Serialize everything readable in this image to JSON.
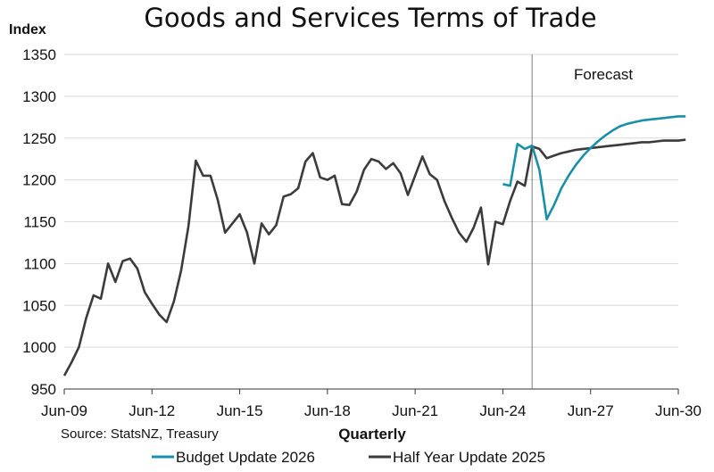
{
  "chart_data": {
    "type": "line",
    "title": "Goods and Services Terms of Trade",
    "ylabel": "Index",
    "xlabel": "Quarterly",
    "source": "Source: StatsNZ, Treasury",
    "annotation": "Forecast",
    "forecast_start": "Jun-25",
    "ylim": [
      950,
      1350
    ],
    "yticks": [
      950,
      1000,
      1050,
      1100,
      1150,
      1200,
      1250,
      1300,
      1350
    ],
    "xrange": [
      "Jun-09",
      "Jun-30"
    ],
    "xticks": [
      "Jun-09",
      "Jun-12",
      "Jun-15",
      "Jun-18",
      "Jun-21",
      "Jun-24",
      "Jun-27",
      "Jun-30"
    ],
    "grid": true,
    "legend_position": "bottom",
    "colors": {
      "budget": "#1a8fa8",
      "half_year": "#3b3b3b",
      "grid": "#d9d9d9",
      "vline": "#7f7f7f",
      "axis": "#333333"
    },
    "series": [
      {
        "name": "Budget Update 2026",
        "start": "Jun-24",
        "values": [
          1195,
          1193,
          1243,
          1237,
          1241,
          1212,
          1153,
          1170,
          1190,
          1205,
          1218,
          1229,
          1238,
          1246,
          1253,
          1259,
          1264,
          1267,
          1269,
          1271,
          1272,
          1273,
          1274,
          1275,
          1276,
          1276
        ]
      },
      {
        "name": "Half Year Update 2025",
        "start": "Jun-09",
        "values": [
          966,
          982,
          1000,
          1035,
          1062,
          1058,
          1100,
          1078,
          1103,
          1106,
          1094,
          1066,
          1052,
          1039,
          1030,
          1055,
          1092,
          1145,
          1223,
          1205,
          1205,
          1176,
          1137,
          1148,
          1159,
          1137,
          1100,
          1148,
          1135,
          1146,
          1180,
          1183,
          1190,
          1222,
          1232,
          1203,
          1200,
          1205,
          1171,
          1170,
          1186,
          1212,
          1225,
          1222,
          1213,
          1220,
          1208,
          1182,
          1205,
          1228,
          1207,
          1200,
          1175,
          1155,
          1137,
          1126,
          1143,
          1167,
          1099,
          1150,
          1147,
          1175,
          1198,
          1193,
          1240,
          1237,
          1226,
          1229,
          1232,
          1234,
          1236,
          1237,
          1238,
          1239,
          1240,
          1241,
          1242,
          1243,
          1244,
          1245,
          1245,
          1246,
          1247,
          1247,
          1247,
          1248
        ]
      }
    ]
  }
}
